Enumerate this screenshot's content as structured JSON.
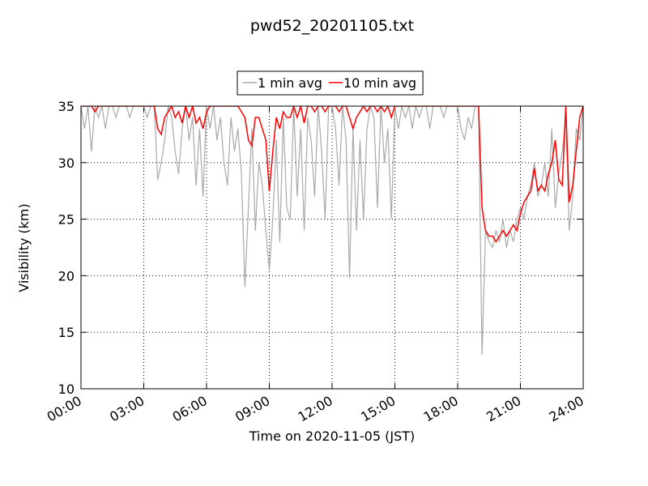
{
  "chart_data": {
    "type": "line",
    "title": "pwd52_20201105.txt",
    "xlabel": "Time on 2020-11-05 (JST)",
    "ylabel": "Visibility (km)",
    "x": [
      "00:00",
      "00:10",
      "00:20",
      "00:30",
      "00:40",
      "00:50",
      "01:00",
      "01:10",
      "01:20",
      "01:30",
      "01:40",
      "01:50",
      "02:00",
      "02:10",
      "02:20",
      "02:30",
      "02:40",
      "02:50",
      "03:00",
      "03:10",
      "03:20",
      "03:30",
      "03:40",
      "03:50",
      "04:00",
      "04:10",
      "04:20",
      "04:30",
      "04:40",
      "04:50",
      "05:00",
      "05:10",
      "05:20",
      "05:30",
      "05:40",
      "05:50",
      "06:00",
      "06:10",
      "06:20",
      "06:30",
      "06:40",
      "06:50",
      "07:00",
      "07:10",
      "07:20",
      "07:30",
      "07:40",
      "07:50",
      "08:00",
      "08:10",
      "08:20",
      "08:30",
      "08:40",
      "08:50",
      "09:00",
      "09:10",
      "09:20",
      "09:30",
      "09:40",
      "09:50",
      "10:00",
      "10:10",
      "10:20",
      "10:30",
      "10:40",
      "10:50",
      "11:00",
      "11:10",
      "11:20",
      "11:30",
      "11:40",
      "11:50",
      "12:00",
      "12:10",
      "12:20",
      "12:30",
      "12:40",
      "12:50",
      "13:00",
      "13:10",
      "13:20",
      "13:30",
      "13:40",
      "13:50",
      "14:00",
      "14:10",
      "14:20",
      "14:30",
      "14:40",
      "14:50",
      "15:00",
      "15:10",
      "15:20",
      "15:30",
      "15:40",
      "15:50",
      "16:00",
      "16:10",
      "16:20",
      "16:30",
      "16:40",
      "16:50",
      "17:00",
      "17:10",
      "17:20",
      "17:30",
      "17:40",
      "17:50",
      "18:00",
      "18:10",
      "18:20",
      "18:30",
      "18:40",
      "18:50",
      "19:00",
      "19:10",
      "19:20",
      "19:30",
      "19:40",
      "19:50",
      "20:00",
      "20:10",
      "20:20",
      "20:30",
      "20:40",
      "20:50",
      "21:00",
      "21:10",
      "21:20",
      "21:30",
      "21:40",
      "21:50",
      "22:00",
      "22:10",
      "22:20",
      "22:30",
      "22:40",
      "22:50",
      "23:00",
      "23:10",
      "23:20",
      "23:30",
      "23:40",
      "23:50",
      "24:00"
    ],
    "series": [
      {
        "name": "1 min avg",
        "color": "#a9a9a9",
        "values": [
          35,
          33,
          35,
          31,
          35,
          34,
          35,
          33,
          35,
          35,
          34,
          35,
          35,
          35,
          34,
          35,
          35,
          35,
          35,
          34,
          35,
          35,
          28.5,
          30,
          32,
          35,
          34,
          31,
          29,
          33,
          35,
          32,
          34,
          28,
          33,
          27,
          35,
          33,
          35,
          32,
          34,
          30,
          28,
          34,
          31,
          33,
          29,
          19,
          26,
          33,
          24,
          30,
          28,
          24,
          20.5,
          25,
          32,
          23,
          34,
          26,
          25,
          35,
          27,
          33,
          24,
          34,
          32,
          27,
          35,
          31,
          25,
          35,
          35,
          33,
          28,
          35,
          32,
          19.8,
          33,
          24,
          32,
          25,
          33,
          35,
          34,
          26,
          35,
          30,
          33,
          25,
          35,
          33,
          35,
          34,
          35,
          33,
          35,
          34,
          35,
          35,
          33,
          35,
          35,
          35,
          34,
          35,
          35,
          35,
          35,
          33,
          32,
          34,
          33,
          35,
          35,
          13,
          24,
          23,
          22.5,
          24,
          23,
          25,
          22.5,
          24,
          23,
          25,
          26,
          25,
          27,
          28,
          30,
          27,
          28,
          30,
          27,
          33,
          26,
          29,
          31,
          34,
          24,
          27,
          33,
          32,
          35
        ]
      },
      {
        "name": "10 min avg",
        "color": "#ff0000",
        "values": [
          35,
          35,
          35,
          35,
          34.5,
          35,
          35,
          35,
          35,
          35,
          35,
          35,
          35,
          35,
          35,
          35,
          35,
          35,
          35,
          35,
          35,
          35,
          33,
          32.5,
          34,
          34.5,
          35,
          34,
          34.5,
          33.5,
          35,
          34,
          35,
          33.5,
          34,
          33,
          34.5,
          35,
          35,
          35,
          35,
          35,
          35,
          35,
          35,
          35,
          34.5,
          34,
          32,
          31.5,
          34,
          34,
          33,
          32,
          27.5,
          31,
          34,
          33,
          34.5,
          34,
          34,
          35,
          34,
          35,
          33.5,
          35,
          35,
          34.5,
          35,
          35,
          34.5,
          35,
          35,
          35,
          34.5,
          35,
          35,
          34,
          33,
          34,
          34.5,
          35,
          34.5,
          35,
          35,
          34.5,
          35,
          34.5,
          35,
          34,
          35,
          35,
          35,
          35,
          35,
          35,
          35,
          35,
          35,
          35,
          35,
          35,
          35,
          35,
          35,
          35,
          35,
          35,
          35,
          35,
          35,
          35,
          35,
          35,
          35,
          26,
          24,
          23.5,
          23.5,
          23,
          23.5,
          24,
          23.5,
          24,
          24.5,
          24,
          25.5,
          26.5,
          27,
          27.5,
          29.5,
          27.5,
          28,
          27.5,
          29,
          30,
          32,
          28.5,
          28,
          35,
          26.5,
          28,
          31,
          34,
          35
        ]
      }
    ],
    "xlim": [
      "00:00",
      "24:00"
    ],
    "xticks": [
      "00:00",
      "03:00",
      "06:00",
      "09:00",
      "12:00",
      "15:00",
      "18:00",
      "21:00",
      "24:00"
    ],
    "ylim": [
      10,
      35
    ],
    "yticks": [
      10,
      15,
      20,
      25,
      30,
      35
    ],
    "grid": true,
    "legend": "top"
  }
}
